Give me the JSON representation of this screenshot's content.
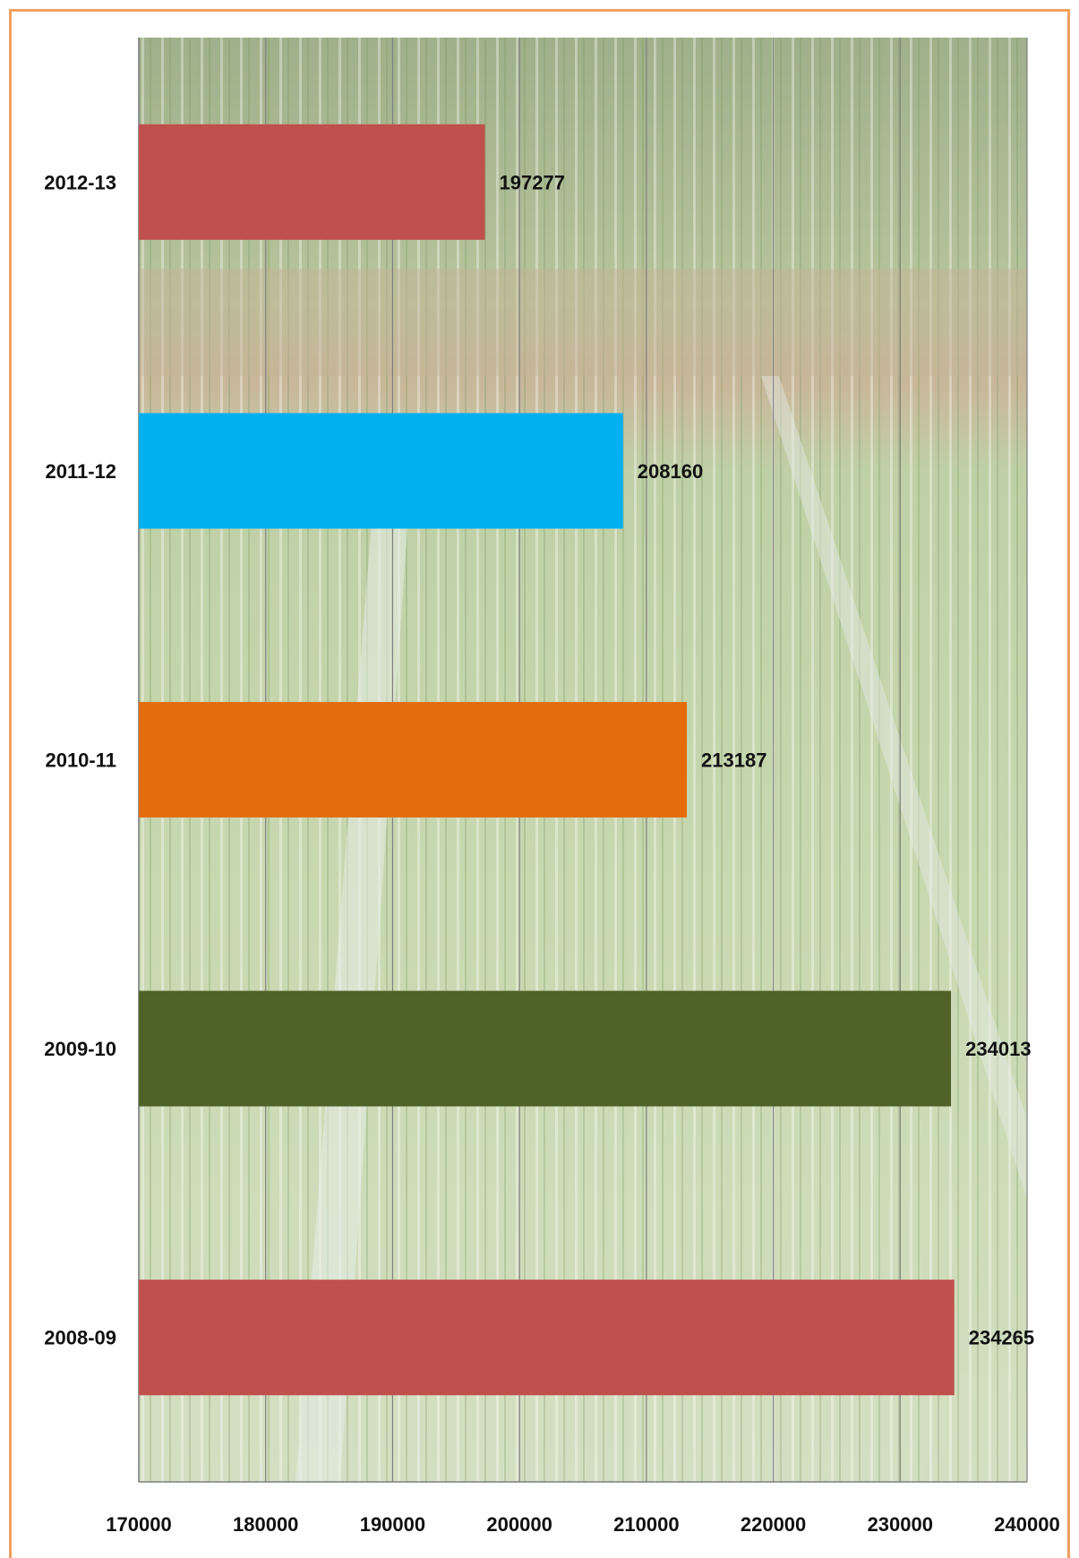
{
  "chart_data": {
    "type": "bar",
    "orientation": "horizontal",
    "title": "",
    "categories": [
      "2012-13",
      "2011-12",
      "2010-11",
      "2009-10",
      "2008-09"
    ],
    "values": [
      197277,
      208160,
      213187,
      234013,
      234265
    ],
    "value_labels": [
      "197277",
      "208160",
      "213187",
      "234013",
      "234265"
    ],
    "bar_colors": [
      "#c0504d",
      "#00b0f0",
      "#e46c0a",
      "#4f6228",
      "#c0504d"
    ],
    "xlim": [
      170000,
      240000
    ],
    "x_ticks": [
      "170000",
      "180000",
      "190000",
      "200000",
      "210000",
      "220000",
      "230000",
      "240000"
    ],
    "grid": true,
    "background": "photo of paddy rice field"
  },
  "colors": {
    "frame_border": "#f0a060"
  }
}
